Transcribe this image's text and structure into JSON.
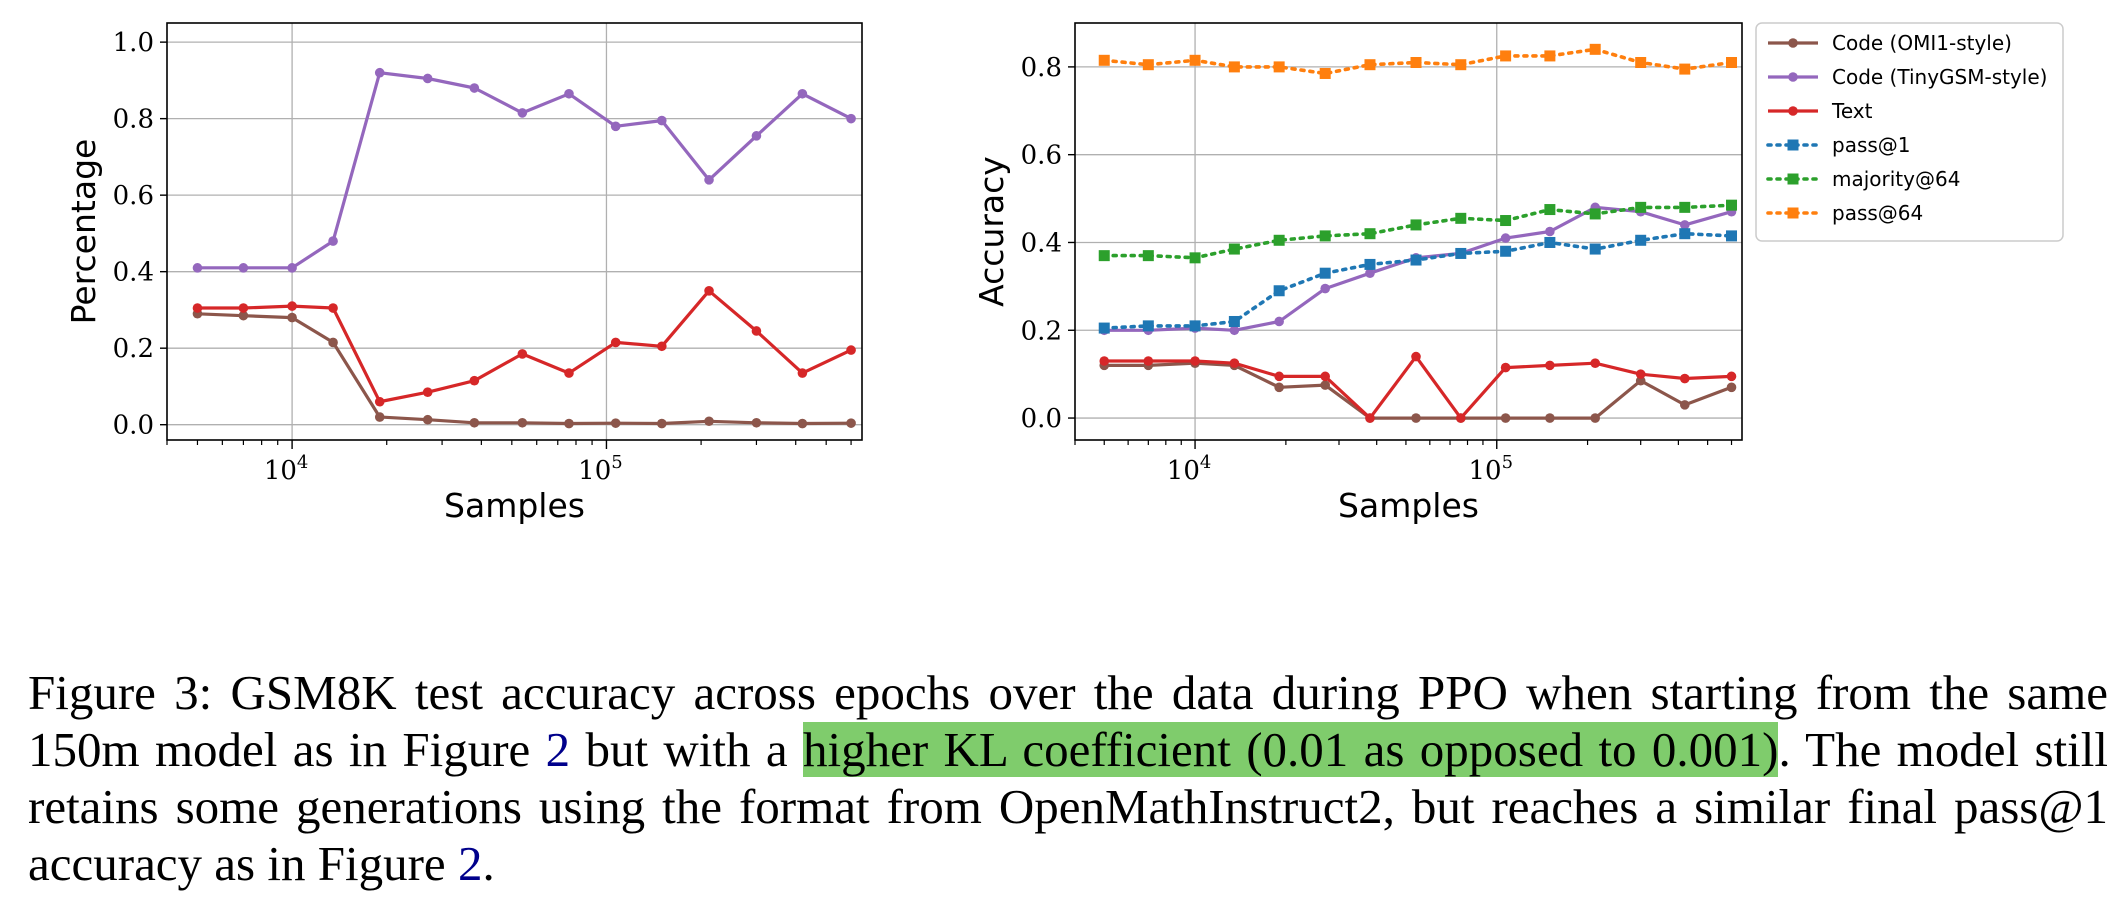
{
  "chart_data": [
    {
      "type": "line",
      "xlabel": "Samples",
      "ylabel": "Percentage",
      "xscale": "log",
      "xlim": [
        4000,
        650000
      ],
      "ylim": [
        -0.04,
        1.05
      ],
      "xticks": [
        {
          "value": 10000,
          "label": "10^4"
        },
        {
          "value": 100000,
          "label": "10^5"
        }
      ],
      "yticks": [
        0.0,
        0.2,
        0.4,
        0.6,
        0.8,
        1.0
      ],
      "grid": true,
      "x": [
        5000,
        7000,
        10000,
        13500,
        19000,
        27000,
        38000,
        54000,
        76000,
        107000,
        150000,
        212000,
        300000,
        420000,
        600000
      ],
      "series": [
        {
          "name": "Code (OMI1-style)",
          "color": "#8c564b",
          "marker": "circle",
          "linestyle": "solid",
          "values": [
            0.29,
            0.285,
            0.28,
            0.215,
            0.02,
            0.013,
            0.005,
            0.005,
            0.003,
            0.004,
            0.003,
            0.009,
            0.005,
            0.003,
            0.004
          ]
        },
        {
          "name": "Code (TinyGSM-style)",
          "color": "#9467bd",
          "marker": "circle",
          "linestyle": "solid",
          "values": [
            0.41,
            0.41,
            0.41,
            0.48,
            0.92,
            0.905,
            0.88,
            0.815,
            0.865,
            0.78,
            0.795,
            0.64,
            0.755,
            0.865,
            0.8
          ]
        },
        {
          "name": "Text",
          "color": "#d62728",
          "marker": "circle",
          "linestyle": "solid",
          "values": [
            0.305,
            0.305,
            0.31,
            0.305,
            0.06,
            0.085,
            0.115,
            0.185,
            0.135,
            0.215,
            0.205,
            0.35,
            0.245,
            0.135,
            0.195
          ]
        }
      ]
    },
    {
      "type": "line",
      "xlabel": "Samples",
      "ylabel": "Accuracy",
      "xscale": "log",
      "xlim": [
        4000,
        650000
      ],
      "ylim": [
        -0.05,
        0.9
      ],
      "xticks": [
        {
          "value": 10000,
          "label": "10^4"
        },
        {
          "value": 100000,
          "label": "10^5"
        }
      ],
      "yticks": [
        0.0,
        0.2,
        0.4,
        0.6,
        0.8
      ],
      "grid": true,
      "legend_position": "outside-right-top",
      "x": [
        5000,
        7000,
        10000,
        13500,
        19000,
        27000,
        38000,
        54000,
        76000,
        107000,
        150000,
        212000,
        300000,
        420000,
        600000
      ],
      "series": [
        {
          "name": "Code (OMI1-style)",
          "color": "#8c564b",
          "marker": "circle",
          "linestyle": "solid",
          "values": [
            0.12,
            0.12,
            0.125,
            0.12,
            0.07,
            0.075,
            0.0,
            0.0,
            0.0,
            0.0,
            0.0,
            0.0,
            0.085,
            0.03,
            0.07
          ]
        },
        {
          "name": "Code (TinyGSM-style)",
          "color": "#9467bd",
          "marker": "circle",
          "linestyle": "solid",
          "values": [
            0.2,
            0.2,
            0.205,
            0.2,
            0.22,
            0.295,
            0.33,
            0.365,
            0.375,
            0.41,
            0.425,
            0.48,
            0.47,
            0.44,
            0.47
          ]
        },
        {
          "name": "Text",
          "color": "#d62728",
          "marker": "circle",
          "linestyle": "solid",
          "values": [
            0.13,
            0.13,
            0.13,
            0.125,
            0.095,
            0.095,
            0.0,
            0.14,
            0.0,
            0.115,
            0.12,
            0.125,
            0.1,
            0.09,
            0.095
          ]
        },
        {
          "name": "pass@1",
          "color": "#1f77b4",
          "marker": "square",
          "linestyle": "dotted",
          "values": [
            0.205,
            0.21,
            0.21,
            0.22,
            0.29,
            0.33,
            0.35,
            0.36,
            0.375,
            0.38,
            0.4,
            0.385,
            0.405,
            0.42,
            0.415
          ]
        },
        {
          "name": "majority@64",
          "color": "#2ca02c",
          "marker": "square",
          "linestyle": "dotted",
          "values": [
            0.37,
            0.37,
            0.365,
            0.385,
            0.405,
            0.415,
            0.42,
            0.44,
            0.455,
            0.45,
            0.475,
            0.465,
            0.48,
            0.48,
            0.485
          ]
        },
        {
          "name": "pass@64",
          "color": "#ff7f0e",
          "marker": "square",
          "linestyle": "dotted",
          "values": [
            0.815,
            0.805,
            0.815,
            0.8,
            0.8,
            0.785,
            0.805,
            0.81,
            0.805,
            0.825,
            0.825,
            0.84,
            0.81,
            0.795,
            0.81
          ]
        }
      ]
    }
  ],
  "caption": {
    "pre": "Figure 3: GSM8K test accuracy across epochs over the data during PPO when starting from the same 150m model as in Figure ",
    "ref1": "2",
    "mid": " but with a ",
    "highlight": "higher KL coefficient (0.01 as opposed to 0.001)",
    "post": ". The model still retains some generations using the format from OpenMathInstruct2, but reaches a similar final pass@1 accuracy as in Figure ",
    "ref2": "2",
    "end": ".",
    "highlight_color": "#7fcc6c",
    "ref_color": "#00008b"
  }
}
